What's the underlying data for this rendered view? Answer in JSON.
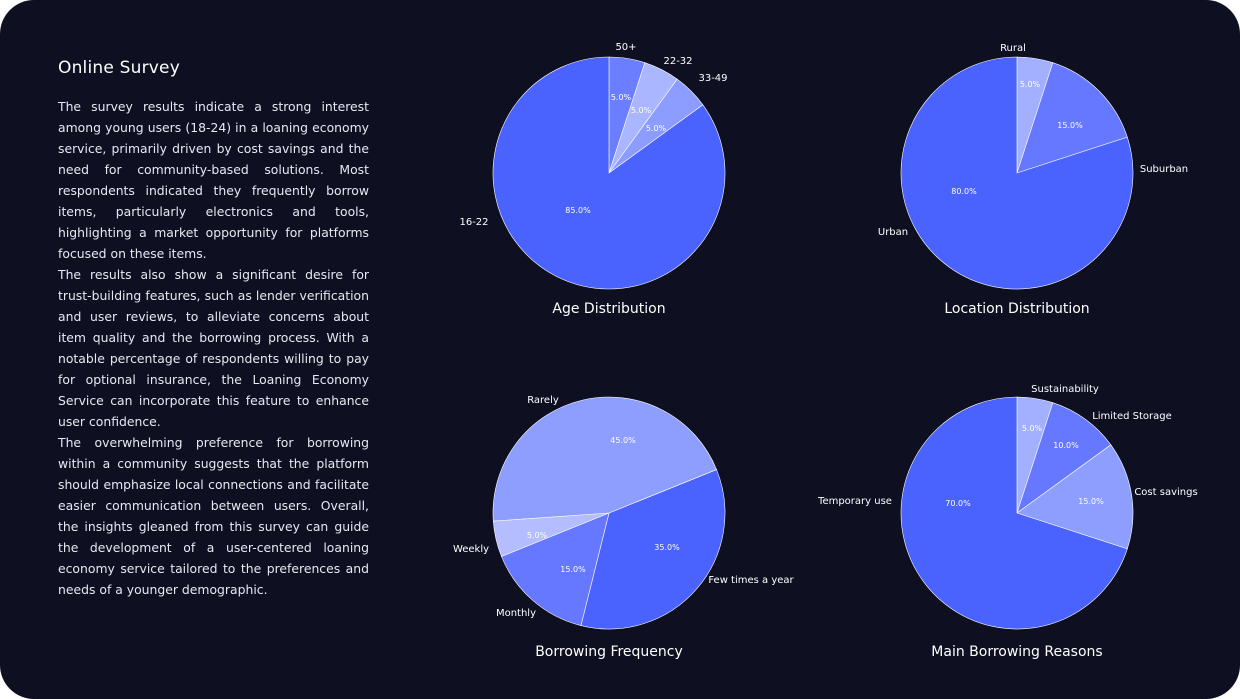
{
  "survey": {
    "title": "Online Survey",
    "paragraphs": [
      "The survey results indicate a strong interest among young users (18-24) in a loaning economy service, primarily driven by cost savings and the need for community-based solutions. Most respondents indicated they frequently borrow items, particularly electronics and tools, highlighting a market opportunity for platforms focused on these items.",
      "The results also show a significant desire for trust-building features, such as lender verification and user reviews, to alleviate concerns about item quality and the borrowing process. With a notable percentage of respondents willing to pay for optional insurance, the Loaning Economy Service can incorporate this feature to enhance user confidence.",
      "The overwhelming preference for borrowing within a community suggests that the platform should emphasize local connections and facilitate easier communication between users. Overall, the insights gleaned from this survey can guide the development of a user-centered loaning economy service tailored to the preferences and needs of a younger demographic."
    ]
  },
  "chart_data": [
    {
      "type": "pie",
      "title": "Age Distribution",
      "slices": [
        {
          "label": "50+",
          "value": 5.0,
          "pct_label": "5.0%",
          "color": "#6b7eff"
        },
        {
          "label": "22-32",
          "value": 5.0,
          "pct_label": "5.0%",
          "color": "#aab6ff"
        },
        {
          "label": "33-49",
          "value": 5.0,
          "pct_label": "5.0%",
          "color": "#8c9cff"
        },
        {
          "label": "16-22",
          "value": 85.0,
          "pct_label": "85.0%",
          "color": "#4a63ff"
        }
      ]
    },
    {
      "type": "pie",
      "title": "Location Distribution",
      "slices": [
        {
          "label": "Rural",
          "value": 5.0,
          "pct_label": "5.0%",
          "color": "#a3b0ff"
        },
        {
          "label": "Suburban",
          "value": 15.0,
          "pct_label": "15.0%",
          "color": "#6578ff"
        },
        {
          "label": "Urban",
          "value": 80.0,
          "pct_label": "80.0%",
          "color": "#4a63ff"
        }
      ]
    },
    {
      "type": "pie",
      "title": "Borrowing Frequency",
      "slices": [
        {
          "label": "Few times a year",
          "value": 35.0,
          "pct_label": "35.0%",
          "color": "#4a63ff"
        },
        {
          "label": "Monthly",
          "value": 15.0,
          "pct_label": "15.0%",
          "color": "#6678ff"
        },
        {
          "label": "Weekly",
          "value": 5.0,
          "pct_label": "5.0%",
          "color": "#b3bdff"
        },
        {
          "label": "Rarely",
          "value": 45.0,
          "pct_label": "45.0%",
          "color": "#8e9eff"
        }
      ]
    },
    {
      "type": "pie",
      "title": "Main Borrowing Reasons",
      "slices": [
        {
          "label": "Sustainability",
          "value": 5.0,
          "pct_label": "5.0%",
          "color": "#a3b0ff"
        },
        {
          "label": "Limited  Storage",
          "value": 10.0,
          "pct_label": "10.0%",
          "color": "#6578ff"
        },
        {
          "label": "Cost savings",
          "value": 15.0,
          "pct_label": "15.0%",
          "color": "#8e9eff"
        },
        {
          "label": "Temporary use",
          "value": 70.0,
          "pct_label": "70.0%",
          "color": "#4a63ff"
        }
      ]
    }
  ]
}
